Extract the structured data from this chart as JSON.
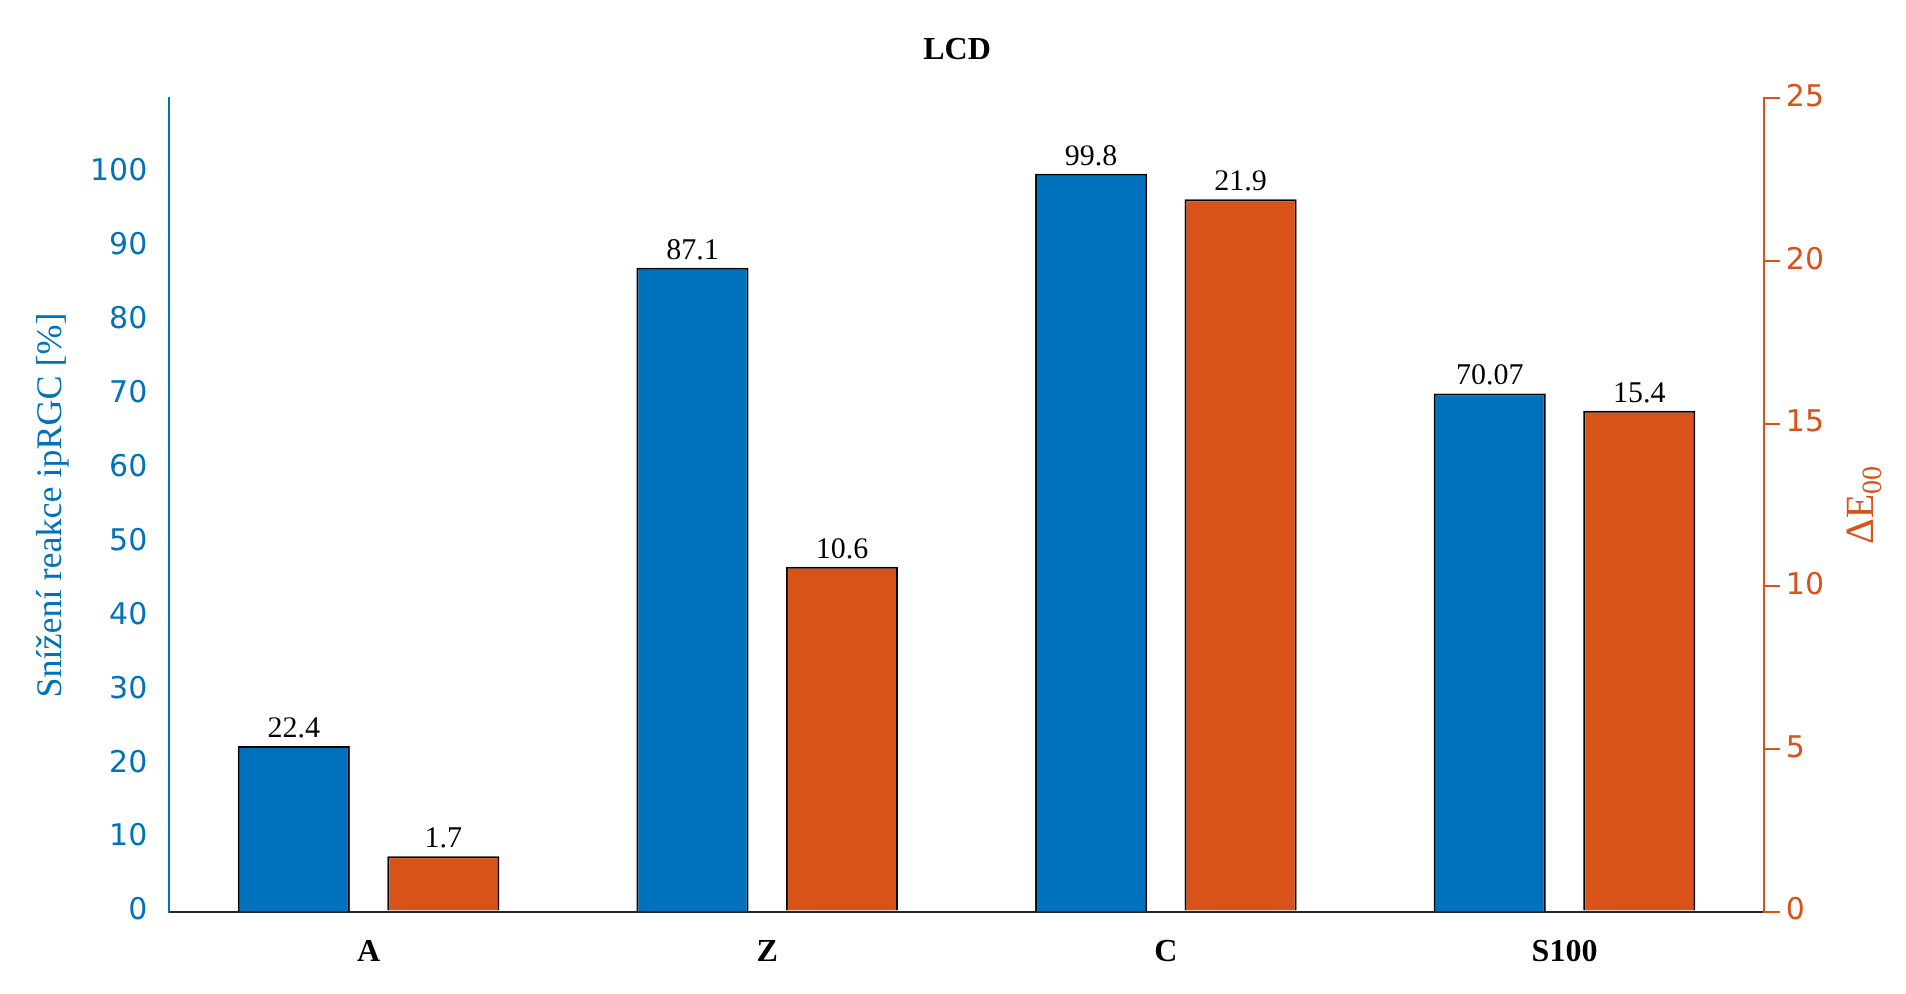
{
  "chart_data": {
    "type": "bar",
    "title": "LCD",
    "ylabel": "Snížení reakce ipRGC [%]",
    "y2label": "ΔE$_{00}$",
    "categories": [
      "A",
      "Z",
      "C",
      "S100"
    ],
    "series": [
      {
        "color": "#0072bd",
        "values": [
          22.4,
          87.1,
          99.8,
          70.07
        ]
      },
      {
        "color": "#d95319",
        "values": [
          1.7,
          10.6,
          21.9,
          15.4
        ],
        "axis": "y2"
      }
    ],
    "ylim": [
      0,
      110
    ],
    "yticks": [
      0,
      10,
      20,
      30,
      40,
      50,
      60,
      70,
      80,
      90,
      100
    ],
    "y2lim": [
      0,
      25
    ],
    "y2ticks": [
      0,
      5,
      10,
      15,
      20,
      25
    ],
    "data_labels": true,
    "grid": false,
    "legend": false
  }
}
